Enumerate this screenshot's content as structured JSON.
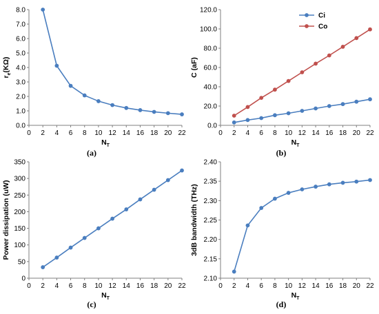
{
  "chart_data": [
    {
      "type": "line",
      "panel": "(a)",
      "xlabel": "N",
      "xlabel_sub": "T",
      "ylabel": "r",
      "ylabel_sub": "e",
      "ylabel_rest": "(KΩ)",
      "x_ticks": [
        "0",
        "2",
        "4",
        "6",
        "8",
        "10",
        "12",
        "14",
        "16",
        "18",
        "20",
        "22"
      ],
      "y_ticks": [
        "0.0",
        "1.0",
        "2.0",
        "3.0",
        "4.0",
        "5.0",
        "6.0",
        "7.0",
        "8.0"
      ],
      "xlim": [
        0,
        22
      ],
      "ylim": [
        0,
        8
      ],
      "grid": false,
      "series": [
        {
          "color": "#4a7ebf",
          "x": [
            2,
            4,
            6,
            8,
            10,
            12,
            14,
            16,
            18,
            20,
            22
          ],
          "y": [
            8.0,
            4.12,
            2.73,
            2.07,
            1.67,
            1.4,
            1.2,
            1.05,
            0.93,
            0.84,
            0.76
          ]
        }
      ]
    },
    {
      "type": "line",
      "panel": "(b)",
      "xlabel": "N",
      "xlabel_sub": "T",
      "ylabel": "C (aF)",
      "x_ticks": [
        "0",
        "2",
        "4",
        "6",
        "8",
        "10",
        "12",
        "14",
        "16",
        "18",
        "20",
        "22"
      ],
      "y_ticks": [
        "0.0",
        "20.0",
        "40.0",
        "60.0",
        "80.0",
        "100.0",
        "120.0"
      ],
      "xlim": [
        0,
        22
      ],
      "ylim": [
        0,
        120
      ],
      "grid": false,
      "legend": "top-right",
      "series": [
        {
          "name": "Ci",
          "color": "#4a7ebf",
          "x": [
            2,
            4,
            6,
            8,
            10,
            12,
            14,
            16,
            18,
            20,
            22
          ],
          "y": [
            3.0,
            5.5,
            7.5,
            10.5,
            12.5,
            15.0,
            17.5,
            20.0,
            22.0,
            24.5,
            27.0
          ]
        },
        {
          "name": "Co",
          "color": "#c0504d",
          "x": [
            2,
            4,
            6,
            8,
            10,
            12,
            14,
            16,
            18,
            20,
            22
          ],
          "y": [
            10.0,
            19.0,
            28.5,
            37.0,
            46.0,
            55.0,
            64.0,
            72.5,
            81.5,
            90.5,
            99.5
          ]
        }
      ]
    },
    {
      "type": "line",
      "panel": "(c)",
      "xlabel": "N",
      "xlabel_sub": "T",
      "ylabel": "Power dissipation (uW)",
      "x_ticks": [
        "0",
        "2",
        "4",
        "6",
        "8",
        "10",
        "12",
        "14",
        "16",
        "18",
        "20",
        "22"
      ],
      "y_ticks": [
        "0",
        "50",
        "100",
        "150",
        "200",
        "250",
        "300",
        "350"
      ],
      "xlim": [
        0,
        22
      ],
      "ylim": [
        0,
        350
      ],
      "grid": false,
      "series": [
        {
          "color": "#4a7ebf",
          "x": [
            2,
            4,
            6,
            8,
            10,
            12,
            14,
            16,
            18,
            20,
            22
          ],
          "y": [
            33,
            62,
            92,
            121,
            150,
            179,
            207,
            237,
            266,
            295,
            324
          ]
        }
      ]
    },
    {
      "type": "line",
      "panel": "(d)",
      "xlabel": "N",
      "xlabel_sub": "T",
      "ylabel": "3dB bandwidth (THz)",
      "x_ticks": [
        "0",
        "2",
        "4",
        "6",
        "8",
        "10",
        "12",
        "14",
        "16",
        "18",
        "20",
        "22"
      ],
      "y_ticks": [
        "2.10",
        "2.15",
        "2.20",
        "2.25",
        "2.30",
        "2.35",
        "2.40"
      ],
      "xlim": [
        0,
        22
      ],
      "ylim": [
        2.1,
        2.4
      ],
      "grid": false,
      "series": [
        {
          "color": "#4a7ebf",
          "x": [
            2,
            4,
            6,
            8,
            10,
            12,
            14,
            16,
            18,
            20,
            22
          ],
          "y": [
            2.117,
            2.236,
            2.281,
            2.305,
            2.32,
            2.329,
            2.336,
            2.342,
            2.346,
            2.349,
            2.353
          ]
        }
      ]
    }
  ]
}
